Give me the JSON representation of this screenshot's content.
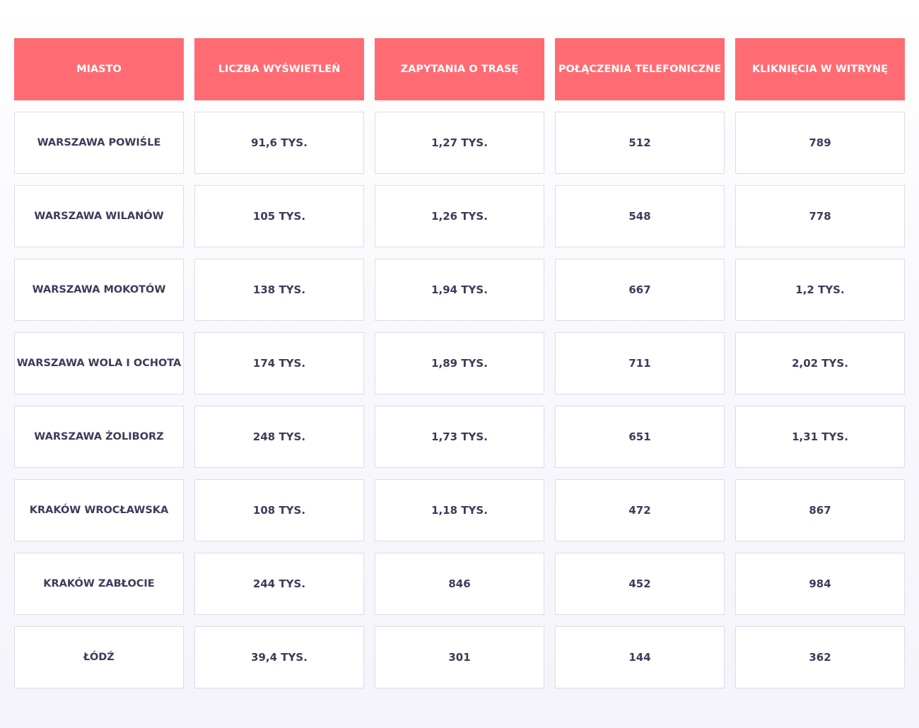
{
  "table": {
    "headers": [
      "MIASTO",
      "LICZBA WYŚWIETLEŃ",
      "ZAPYTANIA O TRASĘ",
      "POŁĄCZENIA TELEFONICZNE",
      "KLIKNIĘCIA W WITRYNĘ"
    ],
    "rows": [
      [
        "WARSZAWA POWIŚLE",
        "91,6 TYS.",
        "1,27 TYS.",
        "512",
        "789"
      ],
      [
        "WARSZAWA WILANÓW",
        "105 TYS.",
        "1,26 TYS.",
        "548",
        "778"
      ],
      [
        "WARSZAWA MOKOTÓW",
        "138 TYS.",
        "1,94 TYS.",
        "667",
        "1,2 TYS."
      ],
      [
        "WARSZAWA WOLA I OCHOTA",
        "174 TYS.",
        "1,89 TYS.",
        "711",
        "2,02 TYS."
      ],
      [
        "WARSZAWA ŻOLIBORZ",
        "248 TYS.",
        "1,73 TYS.",
        "651",
        "1,31 TYS."
      ],
      [
        "KRAKÓW WROCŁAWSKA",
        "108 TYS.",
        "1,18 TYS.",
        "472",
        "867"
      ],
      [
        "KRAKÓW ZABŁOCIE",
        "244 TYS.",
        "846",
        "452",
        "984"
      ],
      [
        "ŁÓDŹ",
        "39,4 TYS.",
        "301",
        "144",
        "362"
      ]
    ]
  },
  "colors": {
    "header_bg": "#ff6b72",
    "header_text": "#ffffff",
    "cell_text": "#3b3b5c",
    "cell_border": "#dcdcec"
  }
}
